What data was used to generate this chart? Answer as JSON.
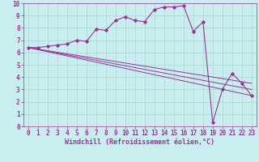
{
  "xlabel": "Windchill (Refroidissement éolien,°C)",
  "bg_color": "#c8eef0",
  "grid_color": "#a8d8d0",
  "line_color": "#993399",
  "label_color": "#993399",
  "xlim": [
    -0.5,
    23.5
  ],
  "ylim": [
    0,
    10
  ],
  "xticks": [
    0,
    1,
    2,
    3,
    4,
    5,
    6,
    7,
    8,
    9,
    10,
    11,
    12,
    13,
    14,
    15,
    16,
    17,
    18,
    19,
    20,
    21,
    22,
    23
  ],
  "yticks": [
    0,
    1,
    2,
    3,
    4,
    5,
    6,
    7,
    8,
    9,
    10
  ],
  "series": [
    [
      0,
      6.4
    ],
    [
      1,
      6.4
    ],
    [
      2,
      6.5
    ],
    [
      3,
      6.6
    ],
    [
      4,
      6.7
    ],
    [
      5,
      7.0
    ],
    [
      6,
      6.9
    ],
    [
      7,
      7.9
    ],
    [
      8,
      7.8
    ],
    [
      9,
      8.6
    ],
    [
      10,
      8.9
    ],
    [
      11,
      8.6
    ],
    [
      12,
      8.5
    ],
    [
      13,
      9.5
    ],
    [
      14,
      9.7
    ],
    [
      15,
      9.7
    ],
    [
      16,
      9.8
    ],
    [
      17,
      7.7
    ],
    [
      18,
      8.5
    ],
    [
      19,
      0.3
    ],
    [
      20,
      3.0
    ],
    [
      21,
      4.3
    ],
    [
      22,
      3.5
    ],
    [
      23,
      2.5
    ]
  ],
  "trend_lines": [
    [
      [
        0,
        6.4
      ],
      [
        23,
        2.5
      ]
    ],
    [
      [
        0,
        6.4
      ],
      [
        23,
        3.0
      ]
    ],
    [
      [
        0,
        6.4
      ],
      [
        23,
        3.5
      ]
    ]
  ]
}
